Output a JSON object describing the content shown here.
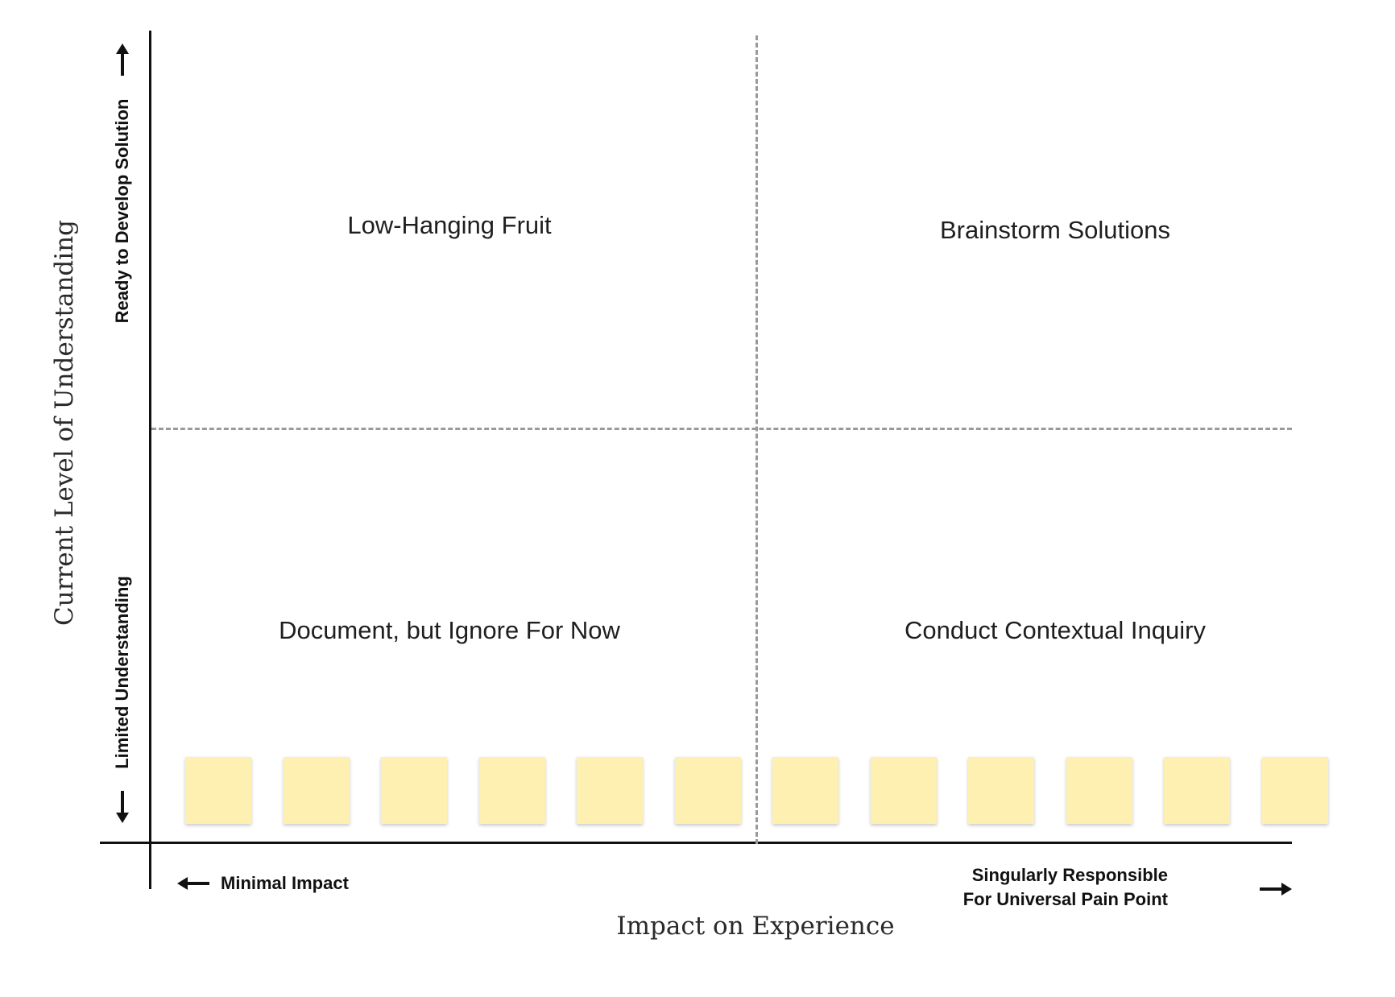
{
  "axes": {
    "y_title": "Current Level of Understanding",
    "y_top_label": "Ready to Develop Solution",
    "y_bottom_label": "Limited Understanding",
    "x_title": "Impact on Experience",
    "x_left_label": "Minimal Impact",
    "x_right_label_line1": "Singularly Responsible",
    "x_right_label_line2": "For Universal Pain Point"
  },
  "quadrants": {
    "top_left": "Low-Hanging Fruit",
    "top_right": "Brainstorm Solutions",
    "bottom_left": "Document, but Ignore For Now",
    "bottom_right": "Conduct Contextual Inquiry"
  },
  "sticky_notes": {
    "count": 12,
    "color": "#fdf0b0"
  },
  "colors": {
    "axis": "#111111",
    "divider": "#9a9a9a"
  }
}
